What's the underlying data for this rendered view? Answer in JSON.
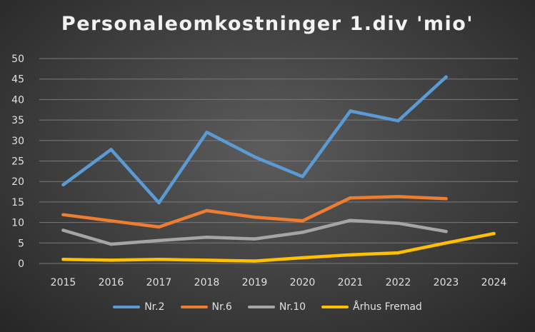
{
  "chart_data": {
    "type": "line",
    "title": "Personaleomkostninger 1.div 'mio'",
    "xlabel": "",
    "ylabel": "",
    "x": [
      "2015",
      "2016",
      "2017",
      "2018",
      "2019",
      "2020",
      "2021",
      "2022",
      "2023",
      "2024"
    ],
    "ylim": [
      0,
      50
    ],
    "yticks": [
      "0",
      "5",
      "10",
      "15",
      "20",
      "25",
      "30",
      "35",
      "40",
      "45",
      "50"
    ],
    "grid": true,
    "legend_position": "bottom",
    "series": [
      {
        "name": "Nr.2",
        "color": "#5b9bd5",
        "values": [
          19.2,
          27.8,
          14.8,
          32.0,
          26.0,
          21.2,
          37.2,
          34.8,
          45.5,
          null
        ]
      },
      {
        "name": "Nr.6",
        "color": "#ed7d31",
        "values": [
          11.9,
          10.4,
          8.9,
          12.9,
          11.3,
          10.4,
          16.0,
          16.3,
          15.8,
          null
        ]
      },
      {
        "name": "Nr.10",
        "color": "#a5a5a5",
        "values": [
          8.1,
          4.7,
          5.6,
          6.4,
          6.0,
          7.6,
          10.5,
          9.8,
          7.8,
          null
        ]
      },
      {
        "name": "Århus Fremad",
        "color": "#ffc000",
        "values": [
          1.0,
          0.8,
          1.0,
          0.8,
          0.6,
          1.4,
          2.1,
          2.6,
          5.0,
          7.3
        ]
      }
    ]
  }
}
